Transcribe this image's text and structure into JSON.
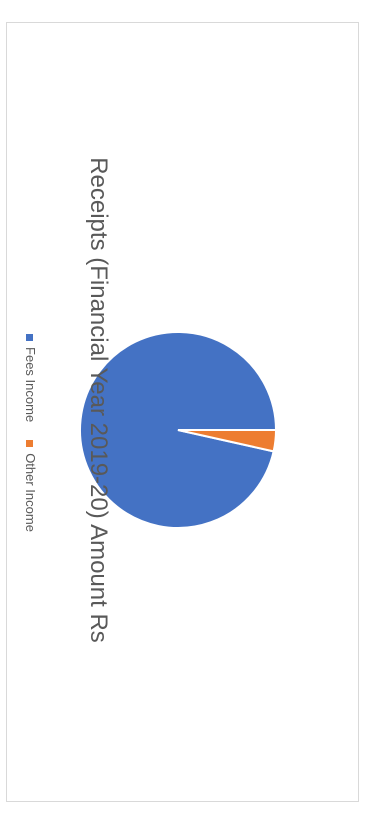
{
  "chart_data": {
    "type": "pie",
    "title": "Receipts (Financial Year 2019-20) Amount Rs",
    "categories": [
      "Fees Income",
      "Other Income"
    ],
    "values": [
      96.5,
      3.5
    ],
    "colors": [
      "#4472c4",
      "#ed7d31"
    ],
    "legend_position": "bottom"
  }
}
